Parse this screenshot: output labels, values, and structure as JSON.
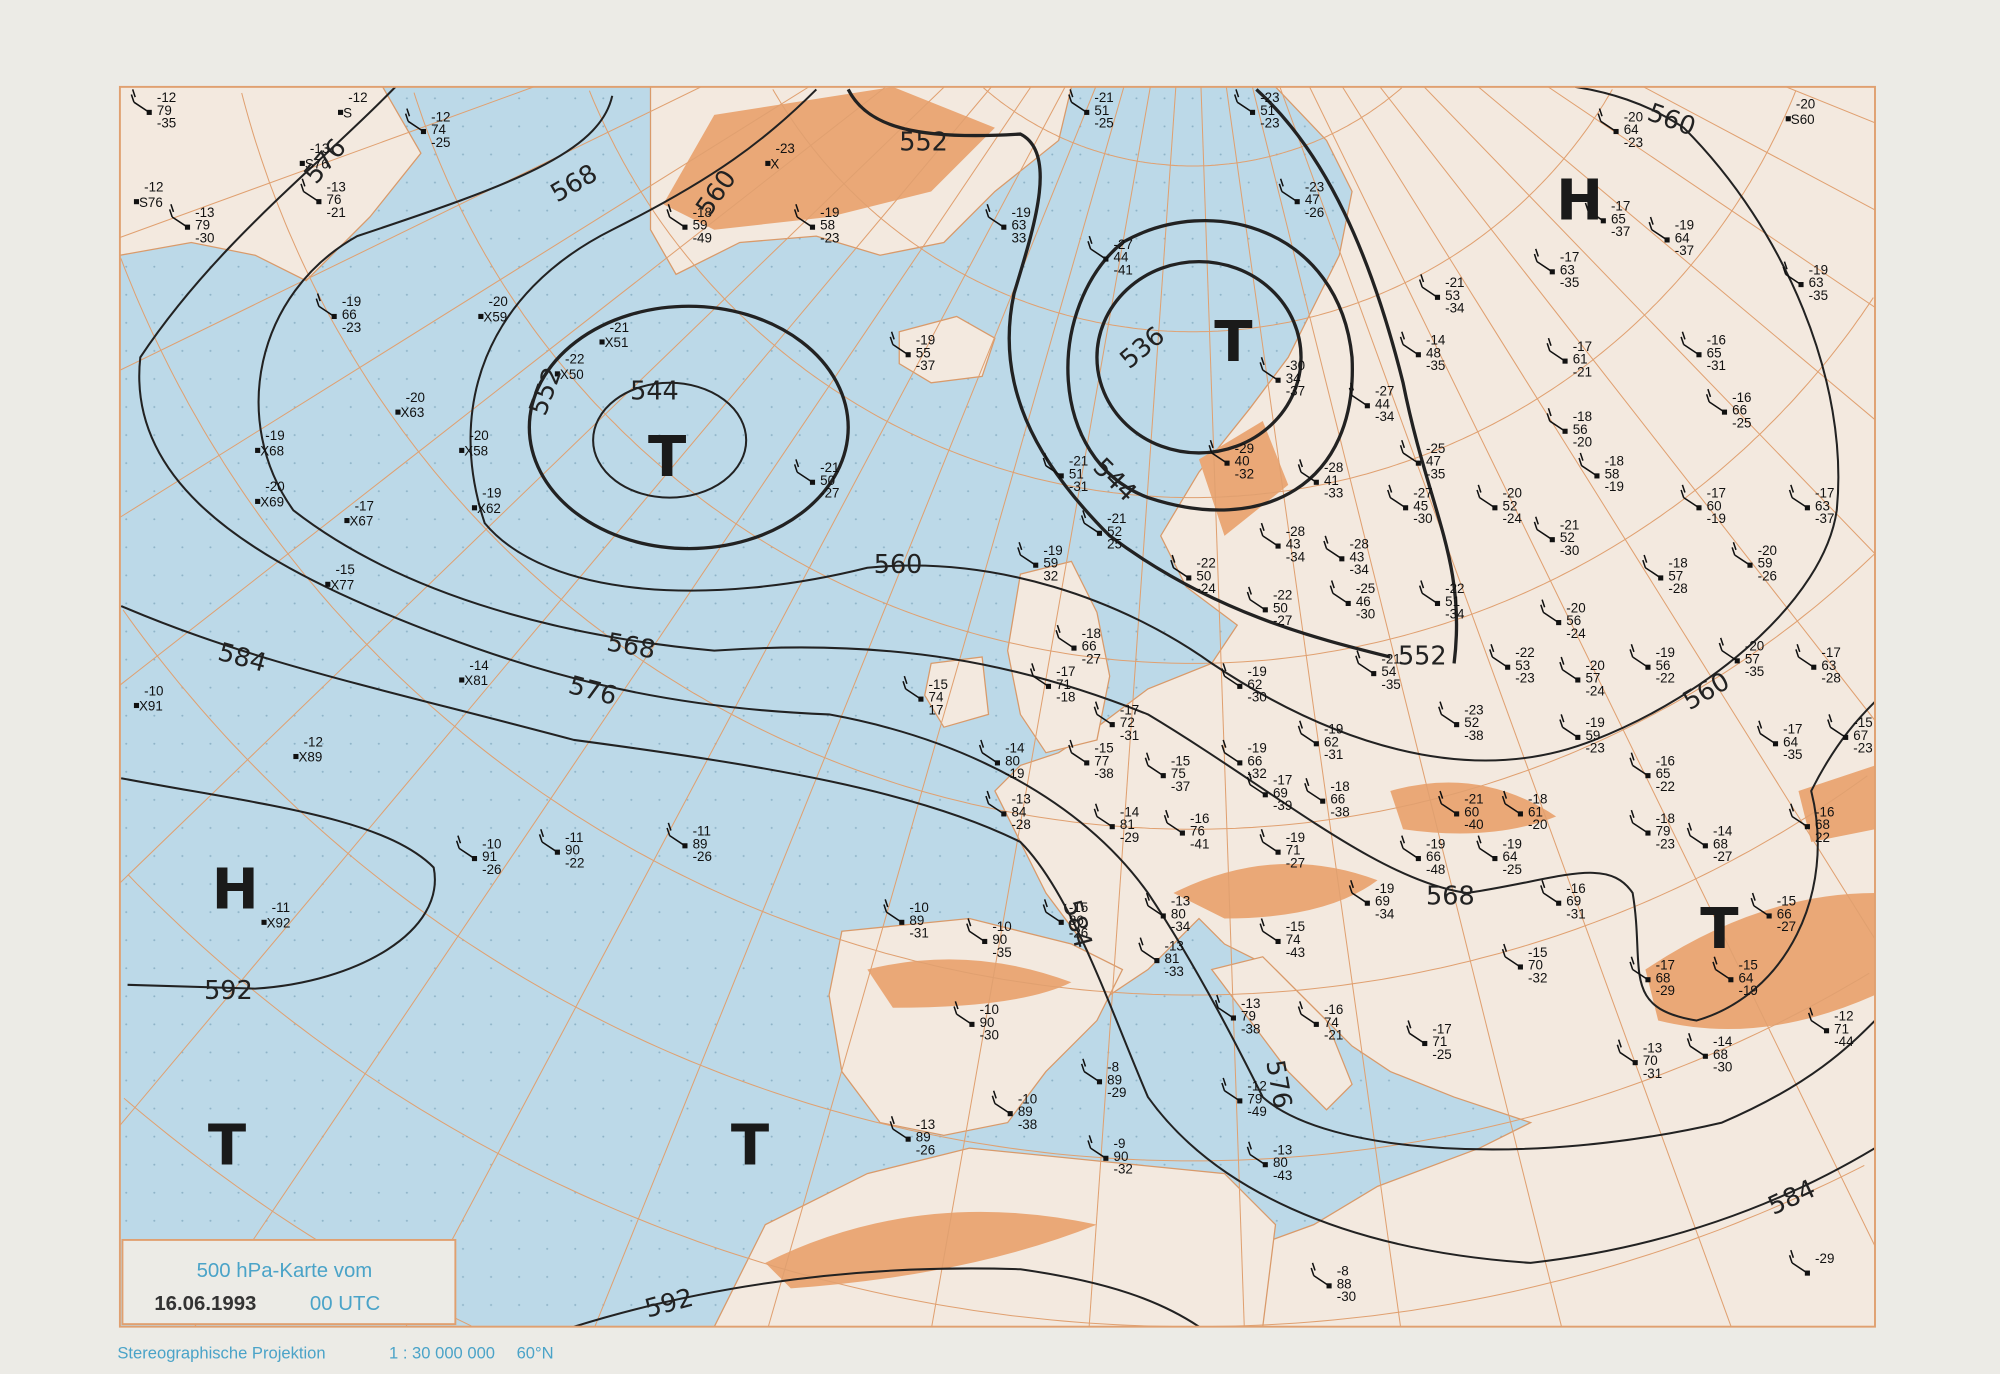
{
  "map": {
    "colors": {
      "sea": "#bcd9e8",
      "land": "#f3e9df",
      "terrain": "#eaa877",
      "graticule": "#e0a070",
      "contours": "#222222",
      "legend_text": "#4aa3c8"
    },
    "contour_labels": [
      "536",
      "544",
      "544",
      "552",
      "552",
      "552",
      "560",
      "560",
      "560",
      "560",
      "568",
      "568",
      "568",
      "576",
      "576",
      "576",
      "584",
      "584",
      "584",
      "592",
      "592"
    ],
    "pressure_centers": [
      "T",
      "T",
      "H",
      "H",
      "T",
      "T",
      "T"
    ],
    "stations": [
      [
        "-12",
        "79",
        "-35"
      ],
      [
        "-12",
        "S",
        ""
      ],
      [
        "-12",
        "74",
        "-25"
      ],
      [
        "-13",
        "S76",
        ""
      ],
      [
        "-13",
        "76",
        "-21"
      ],
      [
        "-12",
        "S76",
        ""
      ],
      [
        "-13",
        "79",
        "-30"
      ],
      [
        "-23",
        "X",
        ""
      ],
      [
        "-18",
        "59",
        "-49"
      ],
      [
        "-19",
        "58",
        "-23"
      ],
      [
        "-19",
        "63",
        "33"
      ],
      [
        "-21",
        "51",
        "-25"
      ],
      [
        "-23",
        "51",
        "-23"
      ],
      [
        "-23",
        "47",
        "-26"
      ],
      [
        "-27",
        "44",
        "-41"
      ],
      [
        "-19",
        "66",
        "-23"
      ],
      [
        "-20",
        "X59",
        ""
      ],
      [
        "-21",
        "X51",
        ""
      ],
      [
        "-22",
        "X50",
        ""
      ],
      [
        "-20",
        "X63",
        ""
      ],
      [
        "-19",
        "X68",
        ""
      ],
      [
        "-20",
        "X58",
        ""
      ],
      [
        "-20",
        "X69",
        ""
      ],
      [
        "-17",
        "X67",
        ""
      ],
      [
        "-19",
        "X62",
        ""
      ],
      [
        "-15",
        "X77",
        ""
      ],
      [
        "-19",
        "55",
        "-37"
      ],
      [
        "-21",
        "50",
        "-27"
      ],
      [
        "-30",
        "34",
        "-37"
      ],
      [
        "-27",
        "44",
        "-34"
      ],
      [
        "-14",
        "48",
        "-35"
      ],
      [
        "-21",
        "53",
        "-34"
      ],
      [
        "-17",
        "63",
        "-35"
      ],
      [
        "-20",
        "64",
        "-23"
      ],
      [
        "-20",
        "S60",
        ""
      ],
      [
        "-17",
        "65",
        "-37"
      ],
      [
        "-19",
        "64",
        "-37"
      ],
      [
        "-19",
        "63",
        "-35"
      ],
      [
        "-17",
        "61",
        "-21"
      ],
      [
        "-16",
        "65",
        "-31"
      ],
      [
        "-16",
        "66",
        "-25"
      ],
      [
        "-18",
        "56",
        "-20"
      ],
      [
        "-18",
        "58",
        "-19"
      ],
      [
        "-17",
        "60",
        "-19"
      ],
      [
        "-17",
        "63",
        "-37"
      ],
      [
        "-21",
        "51",
        "-31"
      ],
      [
        "-21",
        "52",
        "25"
      ],
      [
        "-29",
        "40",
        "-32"
      ],
      [
        "-28",
        "41",
        "-33"
      ],
      [
        "-25",
        "47",
        "-35"
      ],
      [
        "-27",
        "45",
        "-30"
      ],
      [
        "-20",
        "52",
        "-24"
      ],
      [
        "-21",
        "52",
        "-30"
      ],
      [
        "-18",
        "57",
        "-28"
      ],
      [
        "-20",
        "59",
        "-26"
      ],
      [
        "-28",
        "43",
        "-34"
      ],
      [
        "-28",
        "43",
        "-34"
      ],
      [
        "-22",
        "50",
        "-24"
      ],
      [
        "-22",
        "50",
        "-27"
      ],
      [
        "-25",
        "46",
        "-30"
      ],
      [
        "-22",
        "51",
        "-34"
      ],
      [
        "-20",
        "56",
        "-24"
      ],
      [
        "-19",
        "59",
        "32"
      ],
      [
        "-18",
        "66",
        "-27"
      ],
      [
        "-17",
        "71",
        "-18"
      ],
      [
        "-15",
        "74",
        "17"
      ],
      [
        "-21",
        "54",
        "-35"
      ],
      [
        "-19",
        "62",
        "-30"
      ],
      [
        "-22",
        "53",
        "-23"
      ],
      [
        "-20",
        "57",
        "-24"
      ],
      [
        "-19",
        "56",
        "-22"
      ],
      [
        "-20",
        "57",
        "-35"
      ],
      [
        "-17",
        "63",
        "-28"
      ],
      [
        "-23",
        "52",
        "-38"
      ],
      [
        "-19",
        "59",
        "-23"
      ],
      [
        "-17",
        "64",
        "-35"
      ],
      [
        "-15",
        "67",
        "-23"
      ],
      [
        "-17",
        "72",
        "-31"
      ],
      [
        "-15",
        "77",
        "-38"
      ],
      [
        "-15",
        "75",
        "-37"
      ],
      [
        "-19",
        "66",
        "-32"
      ],
      [
        "-19",
        "62",
        "-31"
      ],
      [
        "-14",
        "80",
        "-19"
      ],
      [
        "-17",
        "69",
        "-39"
      ],
      [
        "-18",
        "66",
        "-38"
      ],
      [
        "-16",
        "65",
        "-22"
      ],
      [
        "-13",
        "84",
        "-28"
      ],
      [
        "-14",
        "81",
        "-29"
      ],
      [
        "-16",
        "76",
        "-41"
      ],
      [
        "-21",
        "60",
        "-40"
      ],
      [
        "-18",
        "61",
        "-20"
      ],
      [
        "-18",
        "79",
        "-23"
      ],
      [
        "-14",
        "68",
        "-27"
      ],
      [
        "-16",
        "68",
        "22"
      ],
      [
        "-10",
        "91",
        "-26"
      ],
      [
        "-11",
        "90",
        "-22"
      ],
      [
        "-11",
        "89",
        "-26"
      ],
      [
        "-19",
        "71",
        "-27"
      ],
      [
        "-19",
        "66",
        "-48"
      ],
      [
        "-19",
        "64",
        "-25"
      ],
      [
        "-19",
        "69",
        "-34"
      ],
      [
        "-16",
        "69",
        "-31"
      ],
      [
        "-10",
        "89",
        "-31"
      ],
      [
        "-10",
        "90",
        "-35"
      ],
      [
        "-15",
        "86",
        "-26"
      ],
      [
        "-13",
        "80",
        "-34"
      ],
      [
        "-15",
        "74",
        "-43"
      ],
      [
        "-13",
        "81",
        "-33"
      ],
      [
        "-15",
        "70",
        "-32"
      ],
      [
        "-15",
        "66",
        "-27"
      ],
      [
        "-17",
        "68",
        "-29"
      ],
      [
        "-15",
        "64",
        "-19"
      ],
      [
        "-10",
        "X91",
        ""
      ],
      [
        "-14",
        "X81",
        ""
      ],
      [
        "-12",
        "X89",
        ""
      ],
      [
        "-11",
        "X92",
        ""
      ],
      [
        "-10",
        "90",
        "-30"
      ],
      [
        "-13",
        "79",
        "-38"
      ],
      [
        "-16",
        "74",
        "-21"
      ],
      [
        "-17",
        "71",
        "-25"
      ],
      [
        "-13",
        "70",
        "-31"
      ],
      [
        "-14",
        "68",
        "-30"
      ],
      [
        "-12",
        "71",
        "-44"
      ],
      [
        "-8",
        "89",
        "-29"
      ],
      [
        "-10",
        "89",
        "-38"
      ],
      [
        "-12",
        "79",
        "-49"
      ],
      [
        "-13",
        "89",
        "-26"
      ],
      [
        "-9",
        "90",
        "-32"
      ],
      [
        "-13",
        "80",
        "-43"
      ],
      [
        "-8",
        "88",
        "-30"
      ],
      [
        "-29",
        "",
        ""
      ]
    ]
  },
  "legend": {
    "title": "500 hPa-Karte vom",
    "date": "16.06.1993",
    "time": "00 UTC",
    "projection": "Stereographische Projektion",
    "scale": "1 : 30 000 000",
    "latitude": "60°N"
  }
}
